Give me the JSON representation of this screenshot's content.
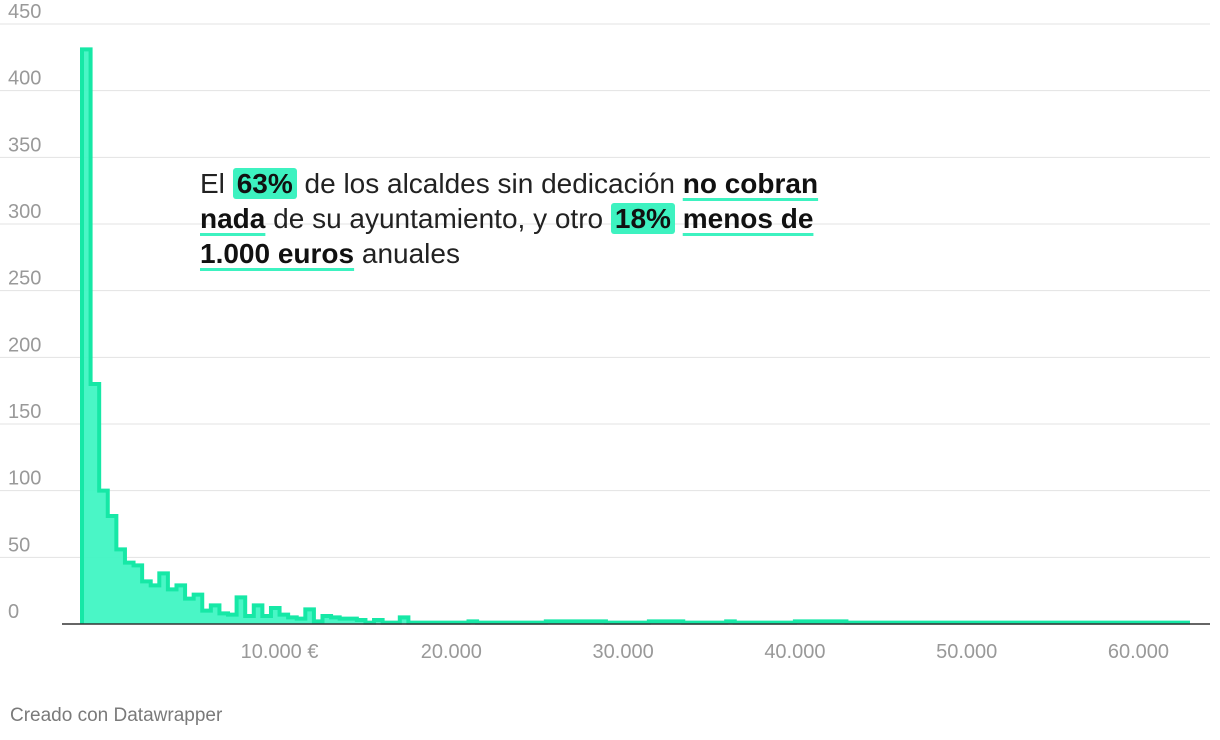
{
  "chart_data": {
    "type": "histogram",
    "bin_width": 500,
    "x_start": 500,
    "ylim": [
      0,
      450
    ],
    "y_ticks": [
      0,
      50,
      100,
      150,
      200,
      250,
      300,
      350,
      400,
      450
    ],
    "x_ticks": [
      {
        "value": 12000,
        "label": "10.000 €"
      },
      {
        "value": 22000,
        "label": "20.000"
      },
      {
        "value": 32000,
        "label": "30.000"
      },
      {
        "value": 42000,
        "label": "40.000"
      },
      {
        "value": 52000,
        "label": "50.000"
      },
      {
        "value": 62000,
        "label": "60.000"
      }
    ],
    "xlim": [
      500,
      65000
    ],
    "values": [
      431,
      180,
      100,
      81,
      56,
      46,
      44,
      32,
      29,
      38,
      26,
      29,
      19,
      22,
      10,
      14,
      8,
      7,
      20,
      6,
      14,
      6,
      12,
      7,
      5,
      4,
      11,
      2,
      6,
      5,
      4,
      4,
      3,
      1,
      3,
      1,
      1,
      5,
      1,
      1,
      1,
      1,
      1,
      1,
      1,
      2,
      1,
      1,
      1,
      1,
      1,
      1,
      1,
      1,
      2,
      2,
      2,
      2,
      2,
      2,
      2,
      1,
      1,
      1,
      1,
      1,
      2,
      2,
      2,
      2,
      1,
      1,
      1,
      1,
      1,
      2,
      1,
      1,
      1,
      1,
      1,
      1,
      1,
      2,
      2,
      2,
      2,
      2,
      2,
      1,
      1,
      1,
      1,
      1,
      1,
      1,
      1,
      1,
      1,
      1,
      1,
      1,
      1,
      1,
      1,
      1,
      1,
      1,
      1,
      1,
      1,
      1,
      1,
      1,
      1,
      1,
      1,
      1,
      1,
      1,
      1,
      1,
      1,
      1,
      1,
      1,
      1,
      1,
      1
    ],
    "grid": true,
    "colors": {
      "fill": "#40f5c3",
      "line": "#16e8a6",
      "grid": "#e3e3e3",
      "axis": "#333333",
      "tick": "#999999"
    }
  },
  "annotation": {
    "t1": "El ",
    "pct1": "63%",
    "t2": " de los alcaldes sin dedicación ",
    "u1": "no cobran nada",
    "t3": " de su ayuntamiento, y otro ",
    "pct2": "18%",
    "t4": " ",
    "u2": "menos de 1.000 euros",
    "t5": " anuales"
  },
  "footer": "Creado con Datawrapper"
}
